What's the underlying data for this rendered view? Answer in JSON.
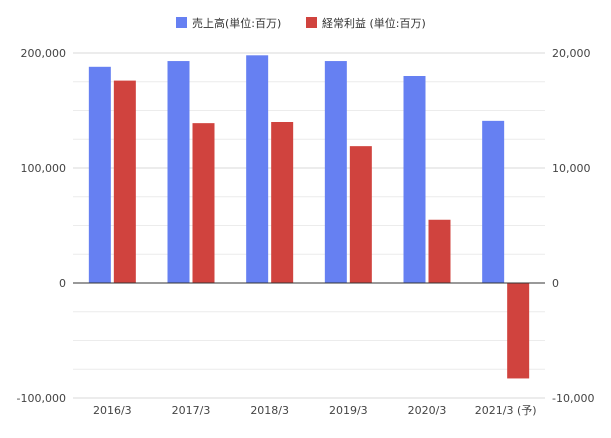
{
  "chart_data": {
    "type": "bar",
    "title": "",
    "categories": [
      "2016/3",
      "2017/3",
      "2018/3",
      "2019/3",
      "2020/3",
      "2021/3 (予)"
    ],
    "series": [
      {
        "name": "売上高(単位:百万)",
        "axis": "left",
        "color": "#6680f2",
        "values": [
          188000,
          193000,
          198000,
          193000,
          180000,
          141000
        ]
      },
      {
        "name": "経常利益 (単位:百万)",
        "axis": "right",
        "color": "#d0433e",
        "values": [
          17600,
          13900,
          14000,
          11900,
          5500,
          -8300
        ]
      }
    ],
    "ylim_left": [
      -100000,
      200000
    ],
    "ylim_right": [
      -10000,
      20000
    ],
    "yticks_left": [
      "200,000",
      "100,000",
      "0",
      "-100,000"
    ],
    "yticks_right": [
      "20,000",
      "10,000",
      "0",
      "-10,000"
    ],
    "grid": true,
    "legend_position": "top-center"
  }
}
